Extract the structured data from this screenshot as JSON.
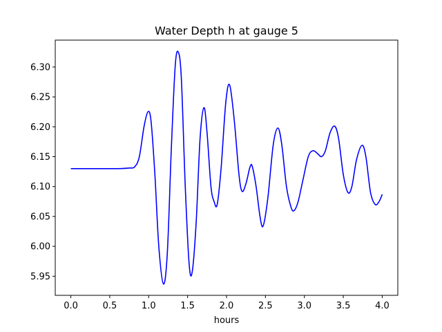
{
  "chart_data": {
    "type": "line",
    "title": "Water Depth h at gauge 5",
    "xlabel": "hours",
    "ylabel": "",
    "xlim": [
      -0.2,
      4.2
    ],
    "ylim": [
      5.918,
      6.345
    ],
    "x_ticks": [
      {
        "value": 0.0,
        "label": "0.0"
      },
      {
        "value": 0.5,
        "label": "0.5"
      },
      {
        "value": 1.0,
        "label": "1.0"
      },
      {
        "value": 1.5,
        "label": "1.5"
      },
      {
        "value": 2.0,
        "label": "2.0"
      },
      {
        "value": 2.5,
        "label": "2.5"
      },
      {
        "value": 3.0,
        "label": "3.0"
      },
      {
        "value": 3.5,
        "label": "3.5"
      },
      {
        "value": 4.0,
        "label": "4.0"
      }
    ],
    "y_ticks": [
      {
        "value": 5.95,
        "label": "5.95"
      },
      {
        "value": 6.0,
        "label": "6.00"
      },
      {
        "value": 6.05,
        "label": "6.05"
      },
      {
        "value": 6.1,
        "label": "6.10"
      },
      {
        "value": 6.15,
        "label": "6.15"
      },
      {
        "value": 6.2,
        "label": "6.20"
      },
      {
        "value": 6.25,
        "label": "6.25"
      },
      {
        "value": 6.3,
        "label": "6.30"
      }
    ],
    "grid": false,
    "legend": "none",
    "series": [
      {
        "color": "#0000ff",
        "points": [
          [
            0.0,
            6.13
          ],
          [
            0.3,
            6.13
          ],
          [
            0.6,
            6.13
          ],
          [
            0.75,
            6.131
          ],
          [
            0.82,
            6.133
          ],
          [
            0.88,
            6.15
          ],
          [
            0.94,
            6.2
          ],
          [
            0.99,
            6.225
          ],
          [
            1.03,
            6.21
          ],
          [
            1.08,
            6.12
          ],
          [
            1.13,
            6.0
          ],
          [
            1.19,
            5.937
          ],
          [
            1.24,
            5.99
          ],
          [
            1.29,
            6.16
          ],
          [
            1.34,
            6.3
          ],
          [
            1.38,
            6.325
          ],
          [
            1.42,
            6.28
          ],
          [
            1.47,
            6.1
          ],
          [
            1.52,
            5.97
          ],
          [
            1.56,
            5.958
          ],
          [
            1.61,
            6.04
          ],
          [
            1.66,
            6.18
          ],
          [
            1.71,
            6.232
          ],
          [
            1.75,
            6.19
          ],
          [
            1.8,
            6.1
          ],
          [
            1.84,
            6.075
          ],
          [
            1.88,
            6.07
          ],
          [
            1.93,
            6.13
          ],
          [
            1.99,
            6.24
          ],
          [
            2.04,
            6.27
          ],
          [
            2.1,
            6.21
          ],
          [
            2.16,
            6.12
          ],
          [
            2.2,
            6.092
          ],
          [
            2.25,
            6.105
          ],
          [
            2.3,
            6.132
          ],
          [
            2.33,
            6.134
          ],
          [
            2.38,
            6.1
          ],
          [
            2.43,
            6.05
          ],
          [
            2.47,
            6.034
          ],
          [
            2.53,
            6.08
          ],
          [
            2.6,
            6.17
          ],
          [
            2.66,
            6.198
          ],
          [
            2.71,
            6.17
          ],
          [
            2.77,
            6.1
          ],
          [
            2.83,
            6.065
          ],
          [
            2.87,
            6.06
          ],
          [
            2.92,
            6.075
          ],
          [
            2.98,
            6.11
          ],
          [
            3.05,
            6.15
          ],
          [
            3.11,
            6.16
          ],
          [
            3.17,
            6.155
          ],
          [
            3.22,
            6.15
          ],
          [
            3.27,
            6.16
          ],
          [
            3.33,
            6.19
          ],
          [
            3.39,
            6.201
          ],
          [
            3.44,
            6.18
          ],
          [
            3.5,
            6.12
          ],
          [
            3.56,
            6.09
          ],
          [
            3.61,
            6.1
          ],
          [
            3.67,
            6.145
          ],
          [
            3.74,
            6.169
          ],
          [
            3.79,
            6.15
          ],
          [
            3.85,
            6.09
          ],
          [
            3.91,
            6.07
          ],
          [
            3.96,
            6.075
          ],
          [
            4.0,
            6.087
          ]
        ]
      }
    ]
  }
}
